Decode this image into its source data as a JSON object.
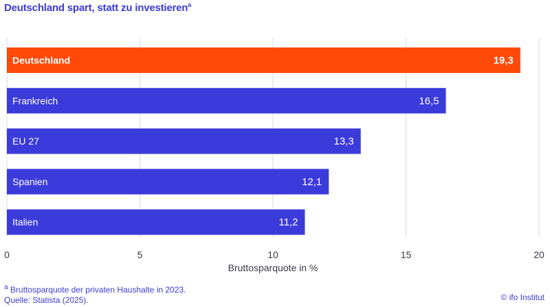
{
  "title": "Deutschland spart, statt zu investieren",
  "title_marker": "a",
  "footnote_marker": "a",
  "footnote_text": "Bruttosparquote der privaten Haushalte in 2023.",
  "source": "Quelle: Statista (2025).",
  "copyright": "© ifo Institut",
  "colors": {
    "highlight": "#ff4a0a",
    "default": "#3b3bdb",
    "grid": "#d9d9e0",
    "text": "#3b3bd4"
  },
  "chart_data": {
    "type": "bar",
    "orientation": "horizontal",
    "categories": [
      "Deutschland",
      "Frankreich",
      "EU 27",
      "Spanien",
      "Italien"
    ],
    "values": [
      19.3,
      16.5,
      13.3,
      12.1,
      11.2
    ],
    "value_labels": [
      "19,3",
      "16,5",
      "13,3",
      "12,1",
      "11,2"
    ],
    "highlight": "Deutschland",
    "xlabel": "Bruttosparquote in %",
    "xlim": [
      0,
      20
    ],
    "xticks": [
      0,
      5,
      10,
      15,
      20
    ],
    "xtick_labels": [
      "0",
      "5",
      "10",
      "15",
      "20"
    ],
    "grid": true
  }
}
